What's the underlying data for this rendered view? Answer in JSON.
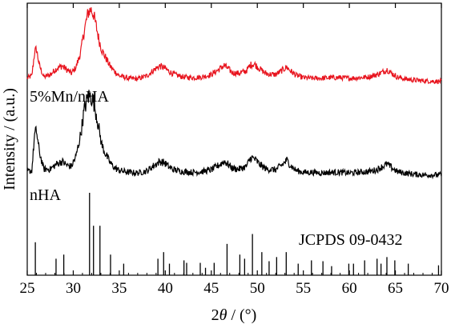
{
  "chart_data": {
    "type": "line",
    "xlabel_prefix": "2",
    "xlabel_symbol": "θ",
    "xlabel_suffix": " / (°)",
    "ylabel": "Intensity / (a.u.)",
    "xlim": [
      25,
      70
    ],
    "x_ticks": [
      "25",
      "30",
      "35",
      "40",
      "45",
      "50",
      "55",
      "60",
      "65",
      "70"
    ],
    "y_ticks_shown": false,
    "grid": false,
    "colors": {
      "mn_nha": "#e8141e",
      "nha": "#000000",
      "ref": "#000000",
      "axes": "#000000"
    },
    "series": [
      {
        "name": "5%Mn/nHA",
        "color": "#e8141e",
        "x": [
          25.0,
          25.5,
          25.8,
          26.0,
          26.3,
          26.8,
          27.5,
          28.2,
          28.8,
          29.3,
          29.8,
          30.3,
          30.8,
          31.2,
          31.6,
          31.9,
          32.2,
          32.5,
          32.8,
          33.1,
          33.5,
          34.0,
          34.5,
          35.0,
          36.0,
          37.0,
          38.0,
          38.8,
          39.4,
          39.9,
          40.5,
          41.2,
          42.0,
          43.0,
          44.0,
          45.0,
          45.8,
          46.4,
          46.8,
          47.3,
          48.0,
          48.8,
          49.3,
          49.7,
          50.2,
          51.0,
          52.0,
          52.8,
          53.2,
          53.6,
          54.2,
          55.0,
          56.0,
          57.0,
          58.0,
          59.0,
          60.0,
          61.0,
          62.0,
          63.0,
          63.6,
          64.1,
          64.6,
          65.2,
          66.0,
          67.0,
          68.0,
          69.0,
          70.0
        ],
        "y": [
          0.8,
          1.2,
          5.0,
          5.6,
          3.0,
          1.0,
          1.4,
          2.4,
          2.8,
          2.2,
          1.6,
          2.6,
          5.0,
          8.6,
          11.4,
          12.0,
          11.2,
          9.2,
          7.0,
          5.4,
          4.2,
          2.8,
          1.9,
          1.2,
          0.8,
          0.7,
          1.2,
          2.2,
          2.8,
          2.5,
          1.8,
          1.3,
          1.0,
          0.9,
          1.0,
          1.4,
          2.2,
          2.9,
          2.4,
          1.7,
          1.6,
          2.0,
          3.0,
          3.1,
          2.4,
          1.5,
          1.4,
          2.2,
          2.6,
          2.0,
          1.3,
          0.9,
          0.8,
          0.8,
          0.9,
          0.9,
          0.8,
          0.9,
          1.0,
          1.4,
          1.8,
          2.2,
          1.6,
          1.0,
          0.7,
          0.5,
          0.4,
          0.3,
          0.3
        ]
      },
      {
        "name": "nHA",
        "color": "#000000",
        "x": [
          25.0,
          25.5,
          25.8,
          26.0,
          26.3,
          26.8,
          27.5,
          28.2,
          28.8,
          29.3,
          29.8,
          30.3,
          30.8,
          31.2,
          31.6,
          31.9,
          32.2,
          32.5,
          32.8,
          33.1,
          33.5,
          34.0,
          34.5,
          35.0,
          36.0,
          37.0,
          38.0,
          38.8,
          39.4,
          39.9,
          40.5,
          41.2,
          42.0,
          43.0,
          44.0,
          45.0,
          45.8,
          46.4,
          46.8,
          47.3,
          48.0,
          48.8,
          49.3,
          49.7,
          50.2,
          51.0,
          52.0,
          52.8,
          53.2,
          53.6,
          54.2,
          55.0,
          56.0,
          57.0,
          58.0,
          59.0,
          60.0,
          61.0,
          62.0,
          63.0,
          63.6,
          64.1,
          64.6,
          65.2,
          66.0,
          67.0,
          68.0,
          69.0,
          70.0
        ],
        "y": [
          0.8,
          1.0,
          6.5,
          7.2,
          4.0,
          1.2,
          1.2,
          2.0,
          2.4,
          1.8,
          1.6,
          3.2,
          6.6,
          10.5,
          12.5,
          12.6,
          11.8,
          9.8,
          7.4,
          5.0,
          3.6,
          2.2,
          1.4,
          1.0,
          0.7,
          0.6,
          0.9,
          1.8,
          2.4,
          2.2,
          1.4,
          1.0,
          0.8,
          0.7,
          0.8,
          1.1,
          1.8,
          2.4,
          2.0,
          1.3,
          1.2,
          1.6,
          3.0,
          2.8,
          2.0,
          1.2,
          1.1,
          2.0,
          2.6,
          1.8,
          1.0,
          0.7,
          0.7,
          0.6,
          0.7,
          0.7,
          0.6,
          0.7,
          0.8,
          1.1,
          1.6,
          2.0,
          1.4,
          0.8,
          0.6,
          0.4,
          0.3,
          0.3,
          0.3
        ]
      }
    ],
    "reference": {
      "name": "JCPDS 09-0432",
      "positions": [
        25.88,
        28.13,
        28.97,
        31.77,
        32.2,
        32.9,
        34.05,
        35.48,
        39.2,
        39.82,
        40.45,
        42.03,
        42.32,
        43.8,
        44.37,
        45.31,
        46.71,
        48.1,
        48.62,
        49.47,
        50.49,
        51.28,
        52.1,
        53.14,
        54.44,
        55.88,
        57.13,
        58.07,
        59.94,
        60.45,
        61.66,
        63.01,
        63.44,
        64.08,
        64.94,
        66.4,
        69.69
      ],
      "intensities": [
        40,
        20,
        25,
        100,
        60,
        60,
        25,
        14,
        20,
        28,
        14,
        18,
        15,
        15,
        9,
        15,
        38,
        25,
        20,
        50,
        28,
        17,
        22,
        28,
        14,
        18,
        17,
        11,
        14,
        14,
        18,
        20,
        14,
        22,
        18,
        14,
        12
      ]
    }
  },
  "labels": {
    "mn_nha": "5%Mn/nHA",
    "nha": "nHA",
    "ref": "JCPDS 09-0432"
  }
}
